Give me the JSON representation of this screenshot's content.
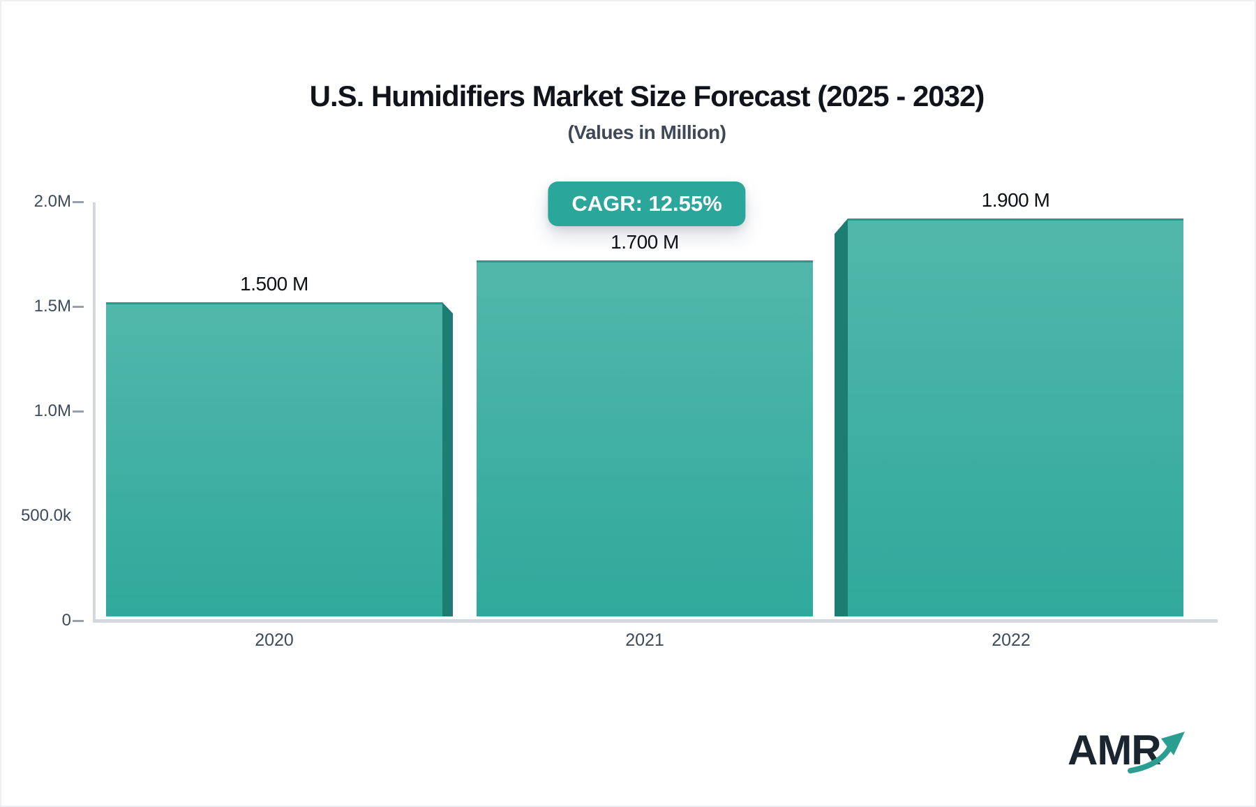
{
  "header": {
    "title": "U.S. Humidifiers Market Size Forecast (2025 - 2032)",
    "subtitle": "(Values in Million)",
    "cagr_label": "CAGR: 12.55%"
  },
  "chart_data": {
    "type": "bar",
    "title": "U.S. Humidifiers Market Size Forecast (2025 - 2032)",
    "subtitle": "(Values in Million)",
    "unit": "Million",
    "cagr_percent": 12.55,
    "categories": [
      "2020",
      "2021",
      "2022"
    ],
    "values_million": [
      1.5,
      1.7,
      1.9
    ],
    "value_labels": [
      "1.500 M",
      "1.700 M",
      "1.900 M"
    ],
    "yticks": [
      "2.0M",
      "1.5M",
      "1.0M",
      "500.0k",
      "0"
    ],
    "ylim_million": [
      0,
      2.0
    ],
    "xlabel": "",
    "ylabel": "",
    "legend": "none",
    "grid": "off",
    "bar_color_top": "#52b7ab",
    "bar_color_bottom": "#2fa99b",
    "bar_side_color": "#1e7d73",
    "bar_top_edge_color": "#2c978c",
    "accent_color": "#2aa79a"
  },
  "logo": {
    "text": "AMR"
  }
}
